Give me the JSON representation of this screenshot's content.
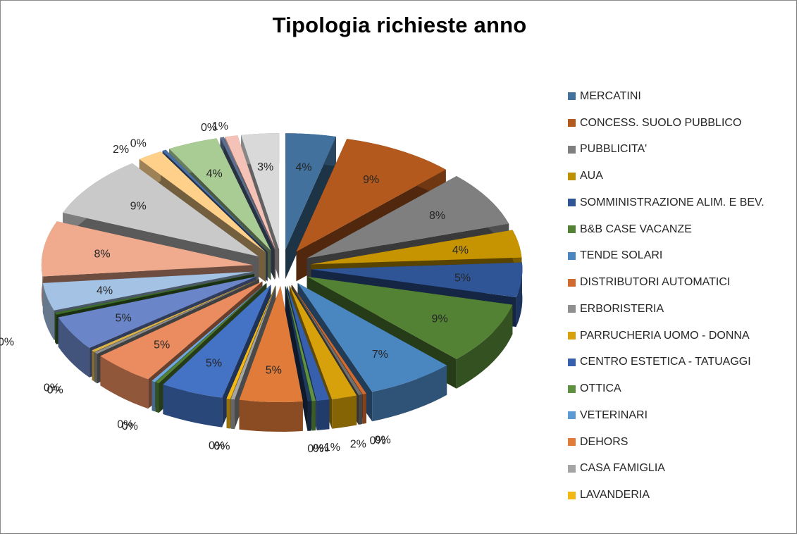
{
  "window": {
    "border_color": "#8a8a8a"
  },
  "chart_data": {
    "type": "pie",
    "subtype": "exploded 3D pie",
    "title": "Tipologia richieste anno",
    "legend_position": "right",
    "legend": [
      {
        "label": "MERCATINI",
        "color": "#41719c"
      },
      {
        "label": "CONCESS. SUOLO PUBBLICO",
        "color": "#b4591e"
      },
      {
        "label": "PUBBLICITA'",
        "color": "#7f7f7f"
      },
      {
        "label": "AUA",
        "color": "#bf9000"
      },
      {
        "label": "SOMMINISTRAZIONE ALIM. E BEV.",
        "color": "#2f5597"
      },
      {
        "label": "B&B CASE VACANZE",
        "color": "#548235"
      },
      {
        "label": "TENDE SOLARI",
        "color": "#4a86c0"
      },
      {
        "label": "DISTRIBUTORI AUTOMATICI",
        "color": "#d06a2f"
      },
      {
        "label": "ERBORISTERIA",
        "color": "#8f8f8f"
      },
      {
        "label": "PARRUCHERIA UOMO - DONNA",
        "color": "#d6a10a"
      },
      {
        "label": "CENTRO ESTETICA - TATUAGGI",
        "color": "#3660ad"
      },
      {
        "label": "OTTICA",
        "color": "#5f9240"
      },
      {
        "label": "VETERINARI",
        "color": "#5b9bd5"
      },
      {
        "label": "DEHORS",
        "color": "#e07b39"
      },
      {
        "label": "CASA FAMIGLIA",
        "color": "#a5a5a5"
      },
      {
        "label": "LAVANDERIA",
        "color": "#f4b813"
      }
    ],
    "slices_clockwise_from_top": [
      {
        "label": "4%",
        "value": 4,
        "color": "#41719c"
      },
      {
        "label": "9%",
        "value": 9,
        "color": "#b4591e"
      },
      {
        "label": "8%",
        "value": 8,
        "color": "#7f7f7f"
      },
      {
        "label": "4%",
        "value": 4,
        "color": "#c59400"
      },
      {
        "label": "5%",
        "value": 5,
        "color": "#2f5597"
      },
      {
        "label": "9%",
        "value": 9,
        "color": "#548235"
      },
      {
        "label": "7%",
        "value": 7,
        "color": "#4a86c0"
      },
      {
        "label": "0%",
        "value": 0.3,
        "color": "#d06a2f"
      },
      {
        "label": "0%",
        "value": 0.3,
        "color": "#6f6f6f"
      },
      {
        "label": "2%",
        "value": 2,
        "color": "#d6a10a"
      },
      {
        "label": "1%",
        "value": 1,
        "color": "#3660ad"
      },
      {
        "label": "0%",
        "value": 0.3,
        "color": "#5f9240"
      },
      {
        "label": "0%",
        "value": 0.3,
        "color": "#1f3a5f"
      },
      {
        "label": "5%",
        "value": 5,
        "color": "#e07b39"
      },
      {
        "label": "0%",
        "value": 0.3,
        "color": "#a5a5a5"
      },
      {
        "label": "0%",
        "value": 0.3,
        "color": "#f4b813"
      },
      {
        "label": "5%",
        "value": 5,
        "color": "#4472c4"
      },
      {
        "label": "0%",
        "value": 0.3,
        "color": "#548235"
      },
      {
        "label": "0%",
        "value": 0.3,
        "color": "#6fa8dc"
      },
      {
        "label": "5%",
        "value": 5,
        "color": "#ea8c5f"
      },
      {
        "label": "0%",
        "value": 0.3,
        "color": "#8f8f8f"
      },
      {
        "label": "0%",
        "value": 0.3,
        "color": "#d9b24a"
      },
      {
        "label": "5%",
        "value": 5,
        "color": "#6a86c8"
      },
      {
        "label": "0%",
        "value": 0.3,
        "color": "#3d6b2a"
      },
      {
        "label": "4%",
        "value": 4,
        "color": "#a4c2e3"
      },
      {
        "label": "8%",
        "value": 8,
        "color": "#f0aa8e"
      },
      {
        "label": "9%",
        "value": 9,
        "color": "#c9c9c9"
      },
      {
        "label": "2%",
        "value": 2,
        "color": "#ffd08a"
      },
      {
        "label": "0%",
        "value": 0.3,
        "color": "#4a6fa5"
      },
      {
        "label": "4%",
        "value": 4,
        "color": "#a9cc94"
      },
      {
        "label": "0%",
        "value": 0.3,
        "color": "#5a6f90"
      },
      {
        "label": "1%",
        "value": 1,
        "color": "#f4c2b6"
      },
      {
        "label": "3%",
        "value": 3,
        "color": "#d9d9d9"
      }
    ]
  }
}
